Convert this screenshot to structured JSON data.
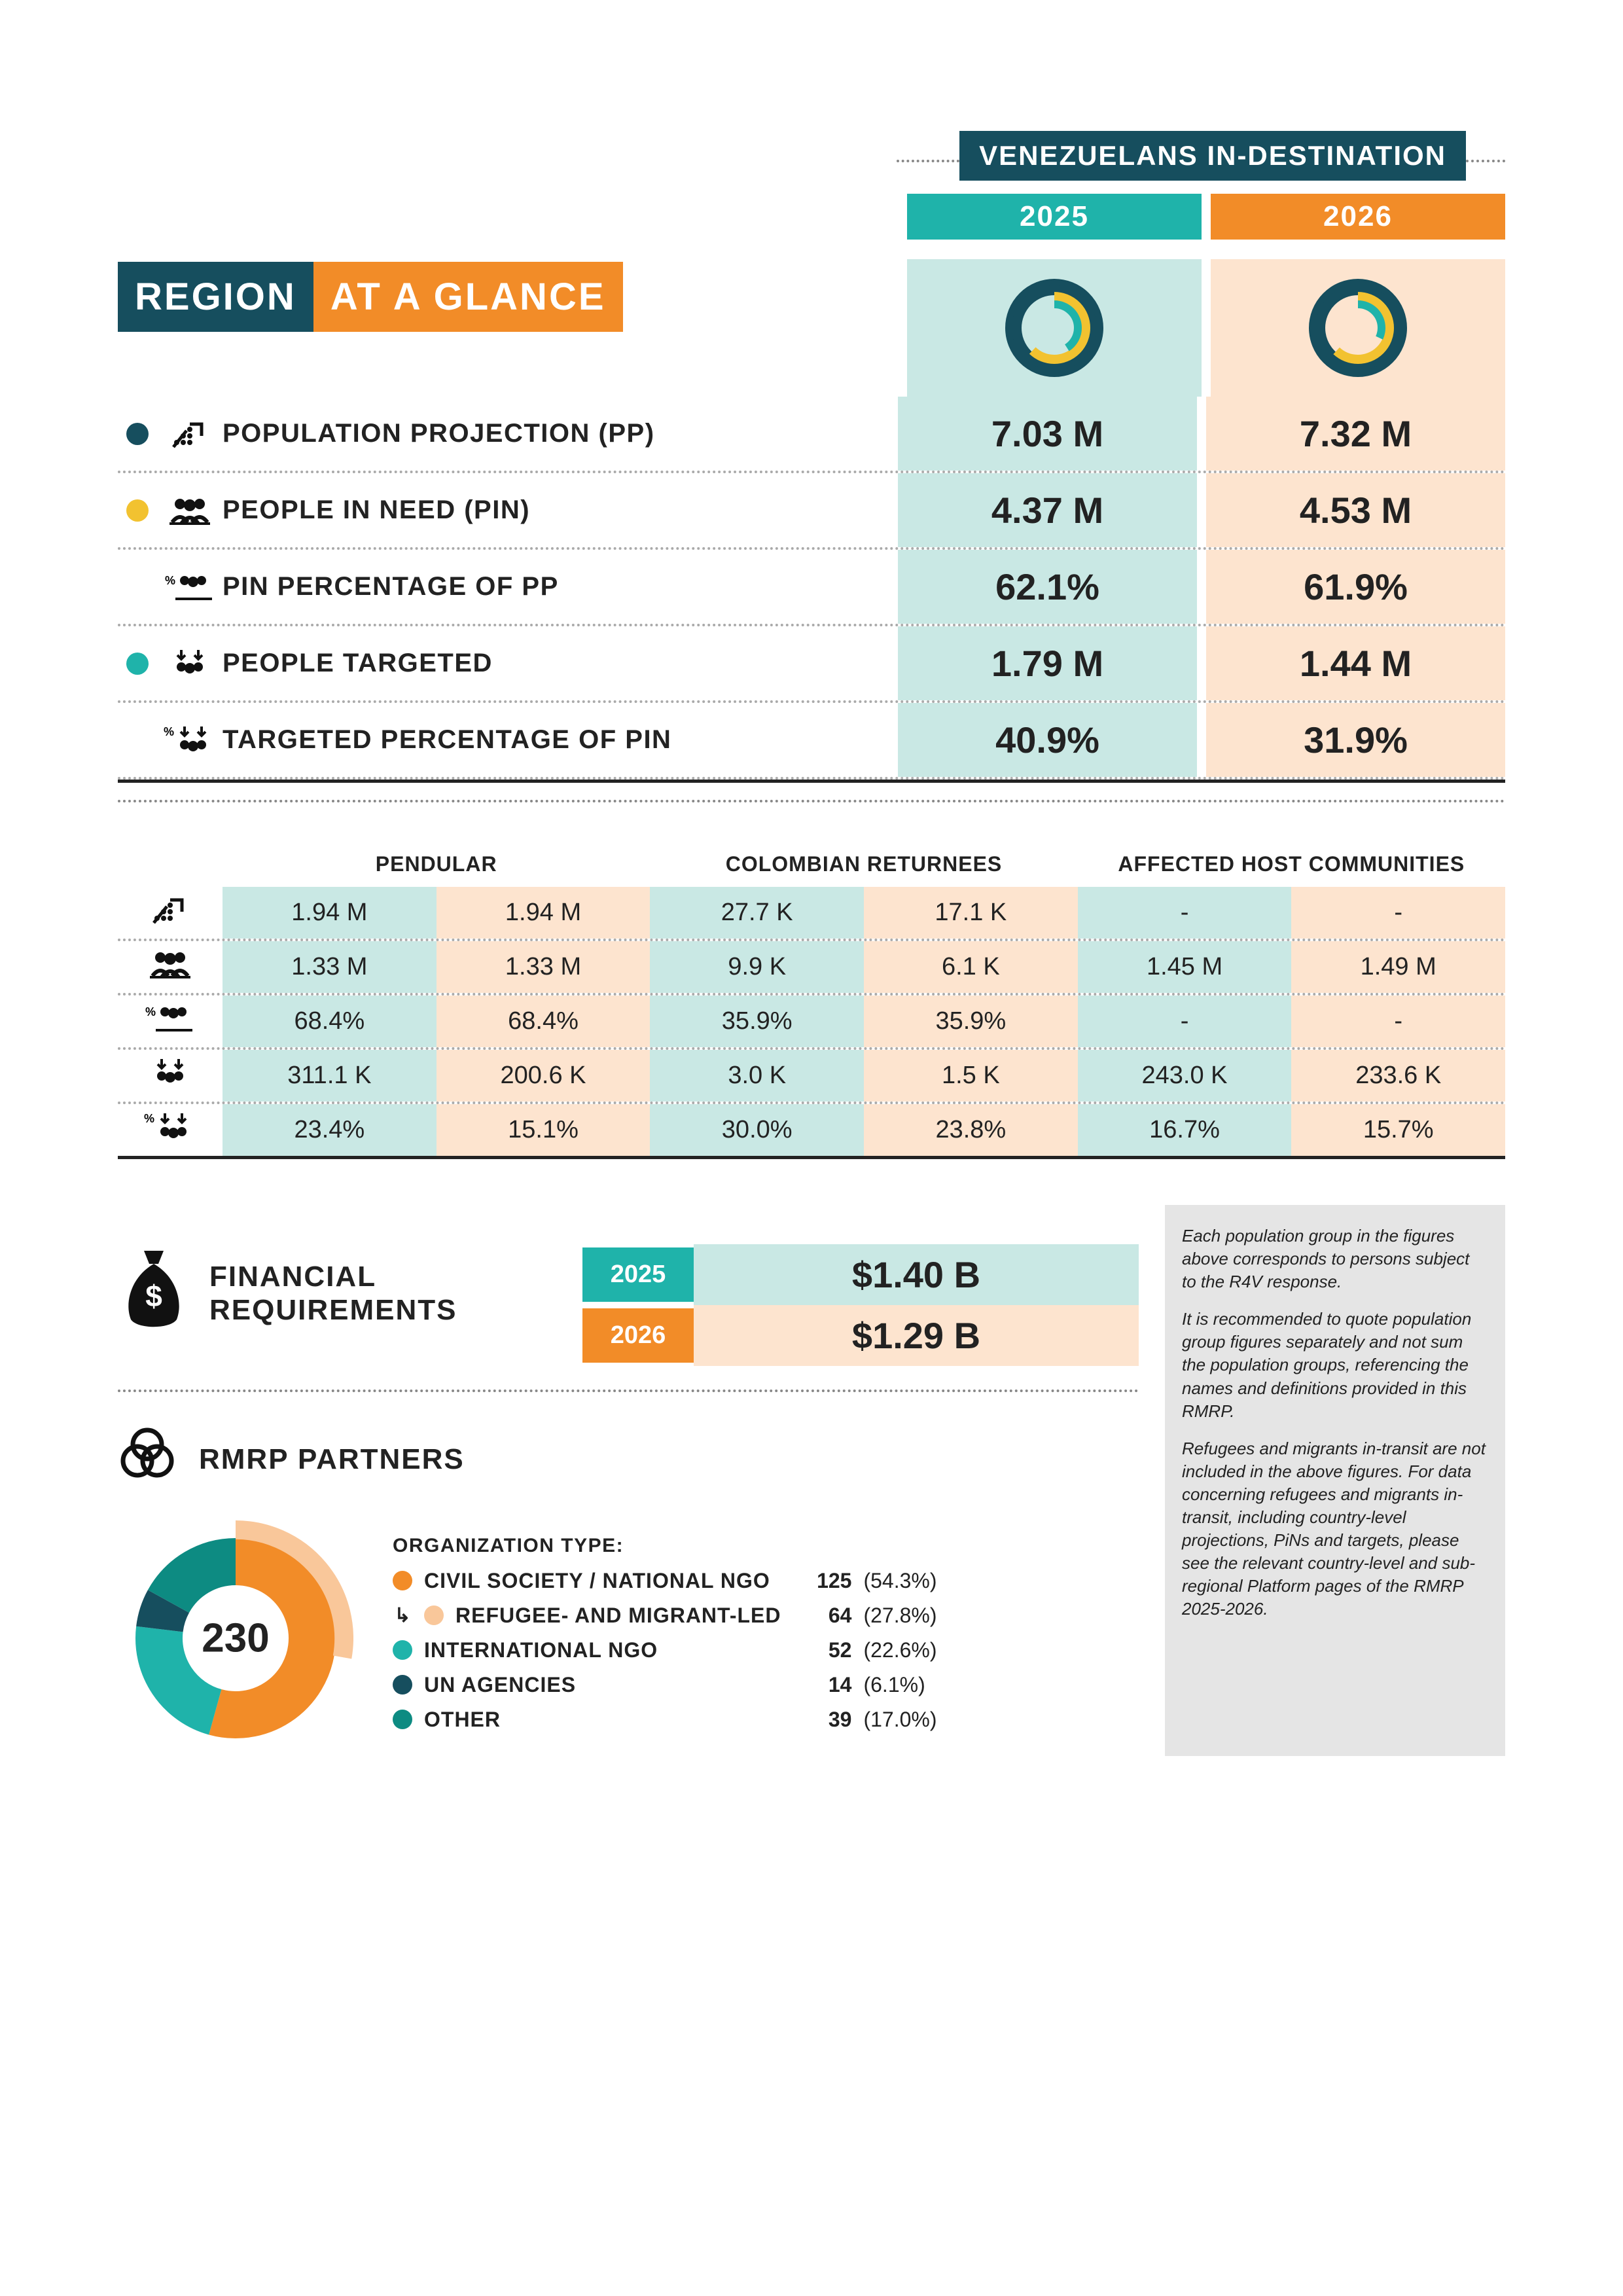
{
  "colors": {
    "dark": "#164e5e",
    "teal": "#1fb3aa",
    "orange": "#f28c28",
    "yellow": "#f2c230",
    "peach": "#fde4cf",
    "palecyan": "#c9e8e4",
    "grey": "#e5e5e5",
    "orange_light": "#f9c79a",
    "teal_dark": "#0d8b82"
  },
  "top_banner": "VENEZUELANS IN-DESTINATION",
  "years": [
    "2025",
    "2026"
  ],
  "title": {
    "a": "REGION",
    "b": "AT A GLANCE"
  },
  "donuts": [
    {
      "outer": 100,
      "mid": 62.1,
      "inner": 40.9
    },
    {
      "outer": 100,
      "mid": 61.9,
      "inner": 31.9
    }
  ],
  "main_rows": [
    {
      "bullet": "#164e5e",
      "icon": "↗",
      "label": "POPULATION PROJECTION (PP)",
      "v": [
        "7.03 M",
        "7.32 M"
      ]
    },
    {
      "bullet": "#f2c230",
      "icon": "👥",
      "label": "PEOPLE IN NEED (PIN)",
      "v": [
        "4.37 M",
        "4.53 M"
      ]
    },
    {
      "bullet": "",
      "icon": "%👥",
      "label": "PIN PERCENTAGE OF PP",
      "v": [
        "62.1%",
        "61.9%"
      ]
    },
    {
      "bullet": "#1fb3aa",
      "icon": "↓↓",
      "label": "PEOPLE TARGETED",
      "v": [
        "1.79 M",
        "1.44 M"
      ]
    },
    {
      "bullet": "",
      "icon": "%↓↓",
      "label": "TARGETED PERCENTAGE OF PIN",
      "v": [
        "40.9%",
        "31.9%"
      ]
    }
  ],
  "sub_headers": [
    "PENDULAR",
    "COLOMBIAN RETURNEES",
    "AFFECTED HOST COMMUNITIES"
  ],
  "sub_icons": [
    "↗",
    "👥",
    "%👥",
    "↓↓",
    "%↓↓"
  ],
  "sub_rows": [
    [
      "1.94 M",
      "1.94 M",
      "27.7 K",
      "17.1 K",
      "-",
      "-"
    ],
    [
      "1.33 M",
      "1.33 M",
      "9.9 K",
      "6.1 K",
      "1.45 M",
      "1.49 M"
    ],
    [
      "68.4%",
      "68.4%",
      "35.9%",
      "35.9%",
      "-",
      "-"
    ],
    [
      "311.1 K",
      "200.6 K",
      "3.0 K",
      "1.5 K",
      "243.0 K",
      "233.6 K"
    ],
    [
      "23.4%",
      "15.1%",
      "30.0%",
      "23.8%",
      "16.7%",
      "15.7%"
    ]
  ],
  "financial": {
    "label": "FINANCIAL REQUIREMENTS",
    "rows": [
      {
        "year": "2025",
        "amount": "$1.40 B",
        "yr_bg": "#1fb3aa",
        "amt_bg": "#c9e8e4"
      },
      {
        "year": "2026",
        "amount": "$1.29 B",
        "yr_bg": "#f28c28",
        "amt_bg": "#fde4cf"
      }
    ]
  },
  "note": [
    "Each population group in the figures above corresponds to persons subject to the R4V response.",
    "It is recommended to quote population group figures separately and not sum the population groups, referencing the names and definitions provided in this RMRP.",
    "Refugees and migrants in-transit are not included in the above figures. For data concerning refugees and migrants in-transit, including country-level projections, PiNs and targets, please see the relevant country-level and sub-regional Platform pages of the RMRP 2025-2026."
  ],
  "partners": {
    "title": "RMRP PARTNERS",
    "total": "230",
    "org_type_label": "ORGANIZATION TYPE:",
    "segments": [
      {
        "pct": 54.3,
        "color": "#f28c28"
      },
      {
        "pct": 22.6,
        "color": "#1fb3aa"
      },
      {
        "pct": 6.1,
        "color": "#164e5e"
      },
      {
        "pct": 17.0,
        "color": "#0d8b82"
      }
    ],
    "outer_segment": {
      "pct": 27.8,
      "color": "#f9c79a"
    },
    "items": [
      {
        "color": "#f28c28",
        "name": "CIVIL SOCIETY / NATIONAL NGO",
        "n": "125",
        "p": "(54.3%)",
        "indent": false
      },
      {
        "color": "#f9c79a",
        "name": "REFUGEE- AND MIGRANT-LED",
        "n": "64",
        "p": "(27.8%)",
        "indent": true
      },
      {
        "color": "#1fb3aa",
        "name": "INTERNATIONAL NGO",
        "n": "52",
        "p": "(22.6%)",
        "indent": false
      },
      {
        "color": "#164e5e",
        "name": "UN AGENCIES",
        "n": "14",
        "p": "(6.1%)",
        "indent": false
      },
      {
        "color": "#0d8b82",
        "name": "OTHER",
        "n": "39",
        "p": "(17.0%)",
        "indent": false
      }
    ]
  }
}
